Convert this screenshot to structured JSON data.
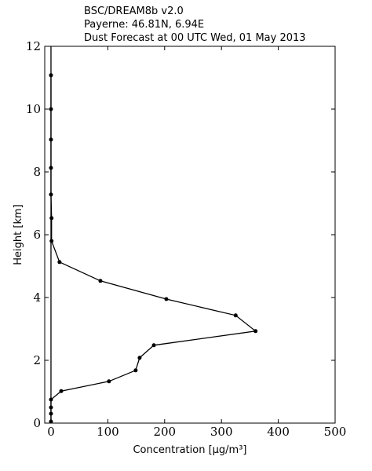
{
  "chart_data": {
    "type": "line",
    "title": [
      "BSC/DREAM8b v2.0",
      "Payerne: 46.81N, 6.94E",
      "Dust Forecast at 00 UTC Wed, 01 May 2013"
    ],
    "x_label": "Concentration [μg/m³]",
    "y_label": "Height [km]",
    "xlim": [
      -11,
      500
    ],
    "ylim": [
      0,
      12
    ],
    "xticks": [
      0,
      100,
      200,
      300,
      400,
      500
    ],
    "yticks": [
      0,
      2,
      4,
      6,
      8,
      10,
      12
    ],
    "series": [
      {
        "color": "#000000",
        "x": [
          0,
          0,
          0,
          0,
          18,
          102,
          149,
          156,
          181,
          360,
          325,
          203,
          87,
          15,
          1,
          1,
          0,
          0,
          0,
          0,
          0
        ],
        "values": [
          0.05,
          0.3,
          0.5,
          0.75,
          1.02,
          1.33,
          1.68,
          2.08,
          2.48,
          2.93,
          3.43,
          3.95,
          4.53,
          5.13,
          5.8,
          6.53,
          7.28,
          8.13,
          9.03,
          10.0,
          11.08
        ]
      }
    ]
  }
}
